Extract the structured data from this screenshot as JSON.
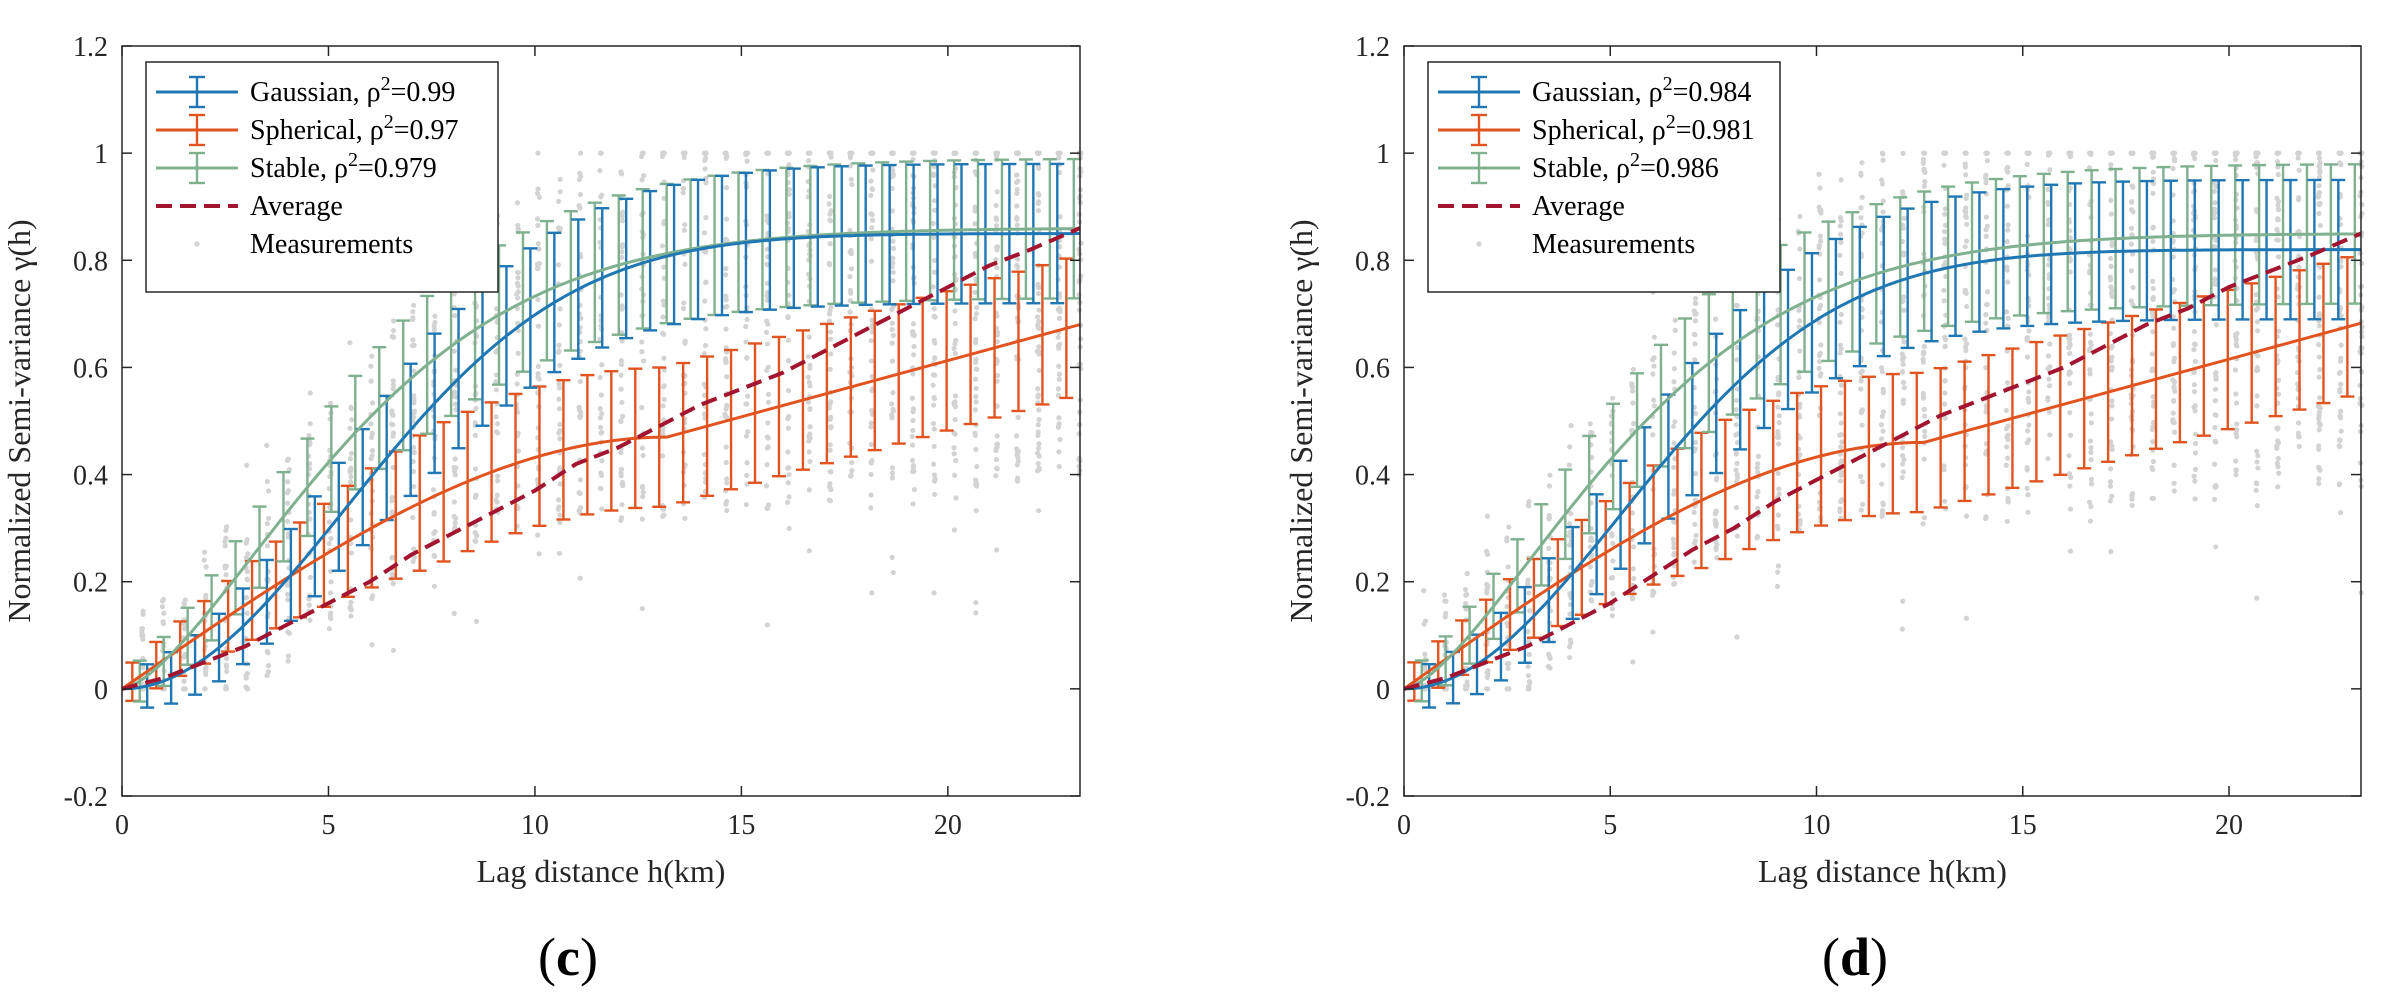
{
  "colors": {
    "gaussian": "#1f77b4",
    "spherical": "#e2541f",
    "stable": "#7fb08f",
    "average": "#a2142f",
    "measurements": "#d3d3d3",
    "axes": "#262626"
  },
  "panels": [
    {
      "panel_label": "c",
      "chart_data": {
        "type": "line",
        "xlabel": "Lag distance h(km)",
        "ylabel": "Normalized Semi-variance γ(h)",
        "xlim": [
          0,
          23.2
        ],
        "ylim": [
          -0.2,
          1.2
        ],
        "x_ticks": [
          0,
          5,
          10,
          15,
          20
        ],
        "y_ticks": [
          -0.2,
          0,
          0.2,
          0.4,
          0.6,
          0.8,
          1,
          1.2
        ],
        "grid": false,
        "legend_position": "top-left",
        "legend": [
          {
            "key": "gaussian",
            "label": "Gaussian, ρ",
            "sup": "2",
            "after": "=0.99"
          },
          {
            "key": "spherical",
            "label": "Spherical, ρ",
            "sup": "2",
            "after": "=0.97"
          },
          {
            "key": "stable",
            "label": "Stable, ρ",
            "sup": "2",
            "after": "=0.979"
          },
          {
            "key": "average",
            "label": "Average",
            "sup": "",
            "after": ""
          },
          {
            "key": "measurements",
            "label": "Measurements",
            "sup": "",
            "after": ""
          }
        ],
        "models": {
          "gaussian": {
            "sill": 0.85,
            "range": 13.2,
            "x_end": 23.2
          },
          "spherical": {
            "nugget": 0.0,
            "scale": 0.47,
            "range": 13.2,
            "slope": 0.021,
            "x_end": 23.2
          },
          "stable": {
            "sill": 0.86,
            "range": 13.5,
            "alpha": 1.5,
            "x_end": 23.2
          }
        },
        "average": {
          "x": [
            0,
            1,
            2,
            3,
            4,
            5,
            6,
            7,
            8,
            9,
            10,
            11,
            12,
            13,
            14,
            15,
            16,
            17,
            18,
            19,
            20,
            21,
            22,
            23.2
          ],
          "y": [
            0,
            0.02,
            0.05,
            0.08,
            0.12,
            0.16,
            0.2,
            0.25,
            0.29,
            0.33,
            0.37,
            0.42,
            0.45,
            0.49,
            0.53,
            0.56,
            0.59,
            0.63,
            0.67,
            0.71,
            0.75,
            0.79,
            0.82,
            0.86
          ]
        },
        "error_bars": {
          "x_start": 0.25,
          "x_step": 0.58,
          "count": 40,
          "gaussian_half_width": 0.13,
          "spherical_half_width": 0.13,
          "stable_half_width": 0.13
        },
        "measurements": {
          "x_min": 0.5,
          "x_max": 23.2,
          "columns": 46,
          "y_cap": 1.0
        }
      }
    },
    {
      "panel_label": "d",
      "chart_data": {
        "type": "line",
        "xlabel": "Lag distance h(km)",
        "ylabel": "Normalized Semi-variance γ(h)",
        "xlim": [
          0,
          23.2
        ],
        "ylim": [
          -0.2,
          1.2
        ],
        "x_ticks": [
          0,
          5,
          10,
          15,
          20
        ],
        "y_ticks": [
          -0.2,
          0,
          0.2,
          0.4,
          0.6,
          0.8,
          1,
          1.2
        ],
        "grid": false,
        "legend_position": "top-left",
        "legend": [
          {
            "key": "gaussian",
            "label": "Gaussian, ρ",
            "sup": "2",
            "after": "=0.984"
          },
          {
            "key": "spherical",
            "label": "Spherical, ρ",
            "sup": "2",
            "after": "=0.981"
          },
          {
            "key": "stable",
            "label": "Stable, ρ",
            "sup": "2",
            "after": "=0.986"
          },
          {
            "key": "average",
            "label": "Average",
            "sup": "",
            "after": ""
          },
          {
            "key": "measurements",
            "label": "Measurements",
            "sup": "",
            "after": ""
          }
        ],
        "models": {
          "gaussian": {
            "sill": 0.82,
            "range": 12.8,
            "x_end": 23.2
          },
          "spherical": {
            "nugget": 0.0,
            "scale": 0.46,
            "range": 12.6,
            "slope": 0.021,
            "x_end": 23.2
          },
          "stable": {
            "sill": 0.85,
            "range": 13.2,
            "alpha": 1.5,
            "x_end": 23.2
          }
        },
        "average": {
          "x": [
            0,
            1,
            2,
            3,
            4,
            5,
            6,
            7,
            8,
            9,
            10,
            11,
            12,
            13,
            14,
            15,
            16,
            17,
            18,
            19,
            20,
            21,
            22,
            23.2
          ],
          "y": [
            0,
            0.02,
            0.05,
            0.08,
            0.12,
            0.16,
            0.21,
            0.26,
            0.3,
            0.35,
            0.39,
            0.43,
            0.47,
            0.51,
            0.54,
            0.57,
            0.6,
            0.64,
            0.68,
            0.71,
            0.75,
            0.78,
            0.81,
            0.85
          ]
        },
        "error_bars": {
          "x_start": 0.25,
          "x_step": 0.58,
          "count": 40,
          "gaussian_half_width": 0.13,
          "spherical_half_width": 0.13,
          "stable_half_width": 0.13
        },
        "measurements": {
          "x_min": 0.5,
          "x_max": 23.2,
          "columns": 46,
          "y_cap": 1.0
        }
      }
    }
  ]
}
